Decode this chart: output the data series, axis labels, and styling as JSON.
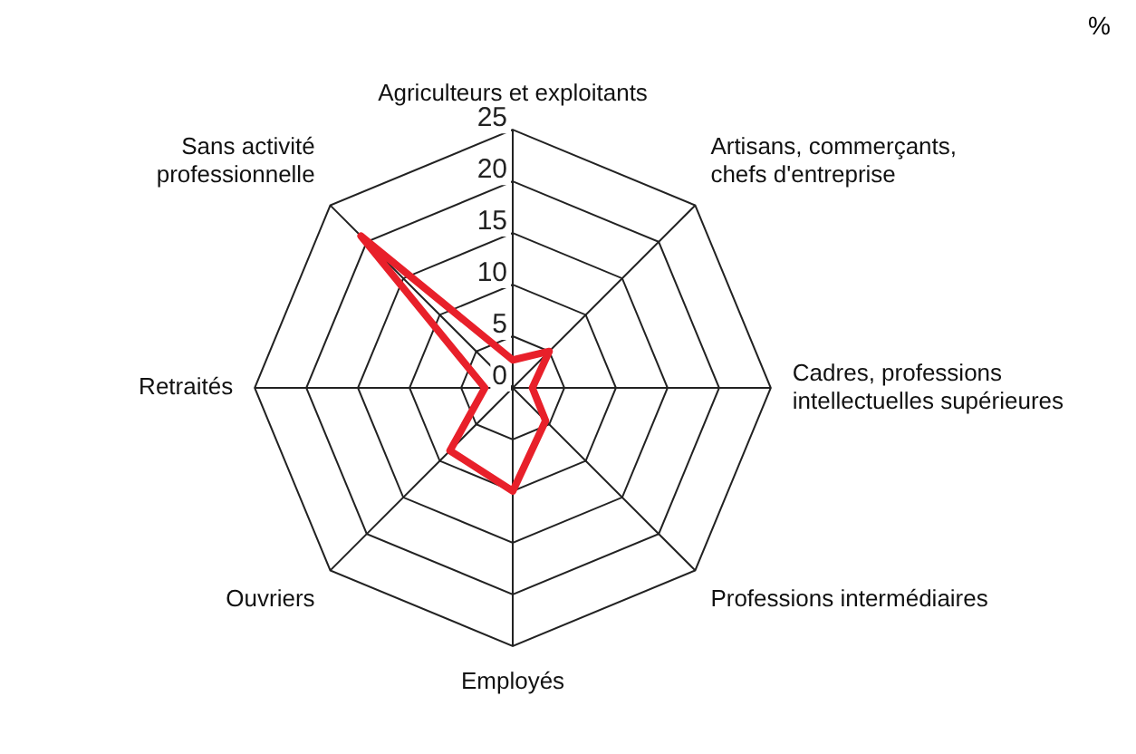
{
  "chart_data": {
    "type": "radar",
    "categories": [
      "Agriculteurs et exploitants",
      "Artisans, commerçants,\nchefs d'entreprise",
      "Cadres, professions\nintellectuelles supérieures",
      "Professions intermédiaires",
      "Employés",
      "Ouvriers",
      "Retraités",
      "Sans activité\nprofessionnelle"
    ],
    "series": [
      {
        "color": "#e8202a",
        "values": [
          2.7,
          5,
          1.9,
          4.5,
          10,
          8.6,
          2.7,
          20.8
        ]
      }
    ],
    "ylim": [
      0,
      25
    ],
    "yticks": [
      0,
      5,
      10,
      15,
      20,
      25
    ],
    "grid": true,
    "legend": false,
    "marker": "none",
    "line_style": "solid",
    "annotations": [
      "%"
    ]
  }
}
